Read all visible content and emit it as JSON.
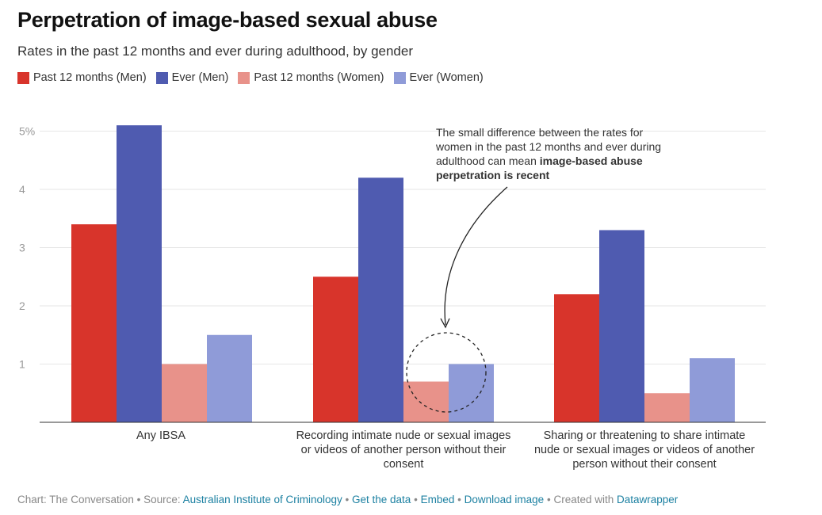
{
  "chart_data": {
    "type": "bar",
    "title": "Perpetration of image-based sexual abuse",
    "subtitle": "Rates in the past 12 months and ever during adulthood, by gender",
    "categories": [
      "Any IBSA",
      "Recording intimate nude or sexual images or videos of another person without their consent",
      "Sharing or threatening to share intimate nude or sexual images or videos of another person without their consent"
    ],
    "series": [
      {
        "name": "Past 12 months (Men)",
        "color": "#d8342b",
        "values": [
          3.4,
          2.5,
          2.2
        ]
      },
      {
        "name": "Ever (Men)",
        "color": "#4f5bb0",
        "values": [
          5.1,
          4.2,
          3.3
        ]
      },
      {
        "name": "Past 12 months (Women)",
        "color": "#e8928a",
        "values": [
          1.0,
          0.7,
          0.5
        ]
      },
      {
        "name": "Ever (Women)",
        "color": "#8f9bd8",
        "values": [
          1.5,
          1.0,
          1.1
        ]
      }
    ],
    "y_ticks": [
      "5%",
      "4",
      "3",
      "2",
      "1"
    ],
    "ylim": [
      0,
      5.3
    ],
    "xlabel": "",
    "ylabel": "",
    "annotation": {
      "text_plain": "The small difference between the rates for women in the past 12 months and ever during adulthood can mean ",
      "text_bold": "image-based abuse perpetration is recent"
    }
  },
  "footer": {
    "chart_by": "Chart: The Conversation",
    "source_label": "Source:",
    "source": "Australian Institute of Criminology",
    "get_data": "Get the data",
    "embed": "Embed",
    "download": "Download image",
    "created_with": "Created with",
    "tool": "Datawrapper",
    "sep": "•"
  }
}
